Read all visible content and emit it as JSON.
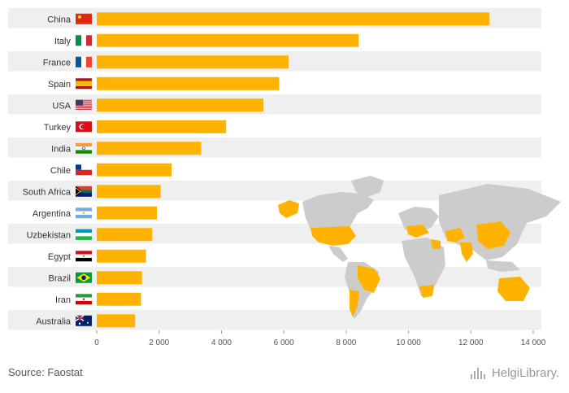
{
  "chart_data": {
    "type": "bar",
    "orientation": "horizontal",
    "categories": [
      "China",
      "Italy",
      "France",
      "Spain",
      "USA",
      "Turkey",
      "India",
      "Chile",
      "South Africa",
      "Argentina",
      "Uzbekistan",
      "Egypt",
      "Brazil",
      "Iran",
      "Australia"
    ],
    "values": [
      12600,
      8400,
      6150,
      5850,
      5350,
      4150,
      3350,
      2400,
      2050,
      1930,
      1780,
      1580,
      1450,
      1420,
      1230
    ],
    "xlim": [
      0,
      14000
    ],
    "xticks": [
      0,
      2000,
      4000,
      6000,
      8000,
      10000,
      12000,
      14000
    ],
    "xtick_labels": [
      "0",
      "2 000",
      "4 000",
      "6 000",
      "8 000",
      "10 000",
      "12 000",
      "14 000"
    ],
    "bar_color": "#FFB300",
    "band_color": "#EFEFEF",
    "map_land_color": "#CCCCCC",
    "map_highlight_color": "#FFB300",
    "grid": false,
    "legend": "none"
  },
  "footer": {
    "source": "Source: Faostat",
    "brand": "HelgiLibrary."
  }
}
